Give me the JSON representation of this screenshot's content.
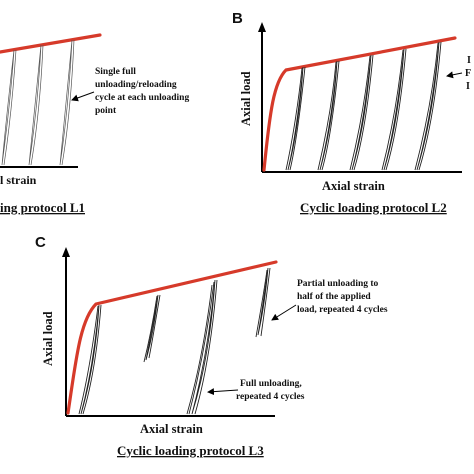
{
  "panels": {
    "a": {
      "annotation": [
        "Single full",
        "unloading/reloading",
        "cycle at each unloading",
        "point"
      ],
      "xlabel": "l strain",
      "caption": "ing protocol L1"
    },
    "b": {
      "letter": "B",
      "ylabel": "Axial load",
      "xlabel": "Axial strain",
      "caption": "Cyclic loading protocol L2",
      "annotation_partial": [
        "I",
        "F",
        "I"
      ]
    },
    "c": {
      "letter": "C",
      "ylabel": "Axial load",
      "xlabel": "Axial strain",
      "caption": "Cyclic loading protocol L3",
      "annotation_partial": [
        "Partial unloading to",
        "half of the applied",
        "load, repeated 4 cycles"
      ],
      "annotation_full": [
        "Full unloading,",
        "repeated 4 cycles"
      ]
    }
  },
  "colors": {
    "envelope": "#d63a2a",
    "loops": "#222222",
    "axes": "#000000"
  }
}
